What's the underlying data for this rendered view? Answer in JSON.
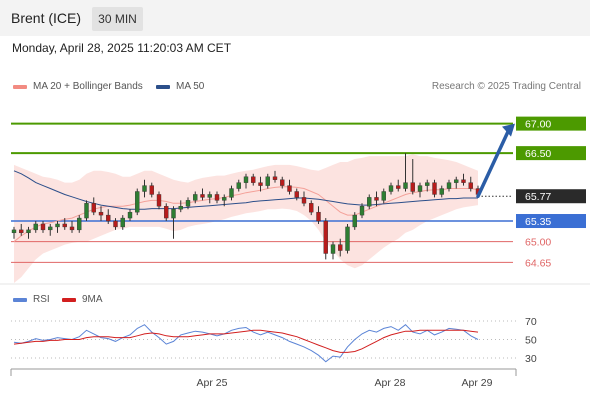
{
  "header": {
    "instrument": "Brent (ICE)",
    "timeframe": "30 MIN"
  },
  "timestamp": "Monday, April 28, 2025 11:20:03 AM CET",
  "legend": {
    "ma20_label": "MA 20 + Bollinger Bands",
    "ma50_label": "MA 50",
    "rsi_label": "RSI",
    "rsi_ma_label": "9MA"
  },
  "credit": "Research © 2025 Trading Central",
  "colors": {
    "ma20": "#f28b82",
    "ma50": "#2c4f8a",
    "rsi": "#5b84d6",
    "rsi_ma": "#d21f1f",
    "resistance": "#4c9a00",
    "support_blue": "#3b6fd4",
    "support_red": "#e06666",
    "current": "#2a2a2a",
    "arrow": "#2b5da6"
  },
  "chart_data": [
    {
      "type": "candlestick",
      "ylim": [
        64.3,
        67.4
      ],
      "levels": [
        {
          "label": "67.00",
          "value": 67.0,
          "kind": "resistance"
        },
        {
          "label": "66.50",
          "value": 66.5,
          "kind": "resistance"
        },
        {
          "label": "65.77",
          "value": 65.77,
          "kind": "current"
        },
        {
          "label": "65.35",
          "value": 65.35,
          "kind": "pivot"
        },
        {
          "label": "65.00",
          "value": 65.0,
          "kind": "support"
        },
        {
          "label": "64.65",
          "value": 64.65,
          "kind": "support"
        }
      ],
      "x_ticks": [
        "Apr 25",
        "Apr 28",
        "Apr 29"
      ],
      "ohlc": [
        [
          65.15,
          65.25,
          65.05,
          65.2
        ],
        [
          65.2,
          65.3,
          65.1,
          65.15
        ],
        [
          65.15,
          65.25,
          65.05,
          65.2
        ],
        [
          65.2,
          65.35,
          65.15,
          65.3
        ],
        [
          65.3,
          65.35,
          65.15,
          65.2
        ],
        [
          65.2,
          65.3,
          65.1,
          65.25
        ],
        [
          65.25,
          65.35,
          65.15,
          65.3
        ],
        [
          65.3,
          65.4,
          65.2,
          65.25
        ],
        [
          65.25,
          65.35,
          65.15,
          65.2
        ],
        [
          65.2,
          65.45,
          65.15,
          65.4
        ],
        [
          65.4,
          65.7,
          65.35,
          65.65
        ],
        [
          65.65,
          65.75,
          65.45,
          65.5
        ],
        [
          65.5,
          65.6,
          65.35,
          65.45
        ],
        [
          65.45,
          65.55,
          65.3,
          65.35
        ],
        [
          65.35,
          65.4,
          65.2,
          65.25
        ],
        [
          65.25,
          65.45,
          65.2,
          65.4
        ],
        [
          65.4,
          65.55,
          65.35,
          65.5
        ],
        [
          65.5,
          65.9,
          65.45,
          65.85
        ],
        [
          65.85,
          66.05,
          65.75,
          65.95
        ],
        [
          65.95,
          66.0,
          65.75,
          65.8
        ],
        [
          65.8,
          65.85,
          65.55,
          65.6
        ],
        [
          65.6,
          65.65,
          65.35,
          65.4
        ],
        [
          65.4,
          65.6,
          65.05,
          65.55
        ],
        [
          65.55,
          65.7,
          65.5,
          65.6
        ],
        [
          65.6,
          65.75,
          65.55,
          65.7
        ],
        [
          65.7,
          65.85,
          65.65,
          65.8
        ],
        [
          65.8,
          65.9,
          65.7,
          65.75
        ],
        [
          65.75,
          65.85,
          65.65,
          65.8
        ],
        [
          65.8,
          65.85,
          65.65,
          65.7
        ],
        [
          65.7,
          65.8,
          65.6,
          65.75
        ],
        [
          65.75,
          65.95,
          65.7,
          65.9
        ],
        [
          65.9,
          66.05,
          65.85,
          66.0
        ],
        [
          66.0,
          66.15,
          65.9,
          66.1
        ],
        [
          66.1,
          66.15,
          65.95,
          66.0
        ],
        [
          66.0,
          66.1,
          65.85,
          65.95
        ],
        [
          65.95,
          66.15,
          65.9,
          66.1
        ],
        [
          66.1,
          66.2,
          66.0,
          66.05
        ],
        [
          66.05,
          66.1,
          65.9,
          65.95
        ],
        [
          65.95,
          66.05,
          65.8,
          65.85
        ],
        [
          65.85,
          65.9,
          65.7,
          65.75
        ],
        [
          65.75,
          65.85,
          65.6,
          65.65
        ],
        [
          65.65,
          65.7,
          65.45,
          65.5
        ],
        [
          65.5,
          65.6,
          65.3,
          65.35
        ],
        [
          65.35,
          65.4,
          64.7,
          64.8
        ],
        [
          64.8,
          65.0,
          64.7,
          64.95
        ],
        [
          64.95,
          65.05,
          64.75,
          64.85
        ],
        [
          64.85,
          65.3,
          64.8,
          65.25
        ],
        [
          65.25,
          65.5,
          65.2,
          65.45
        ],
        [
          65.45,
          65.65,
          65.4,
          65.6
        ],
        [
          65.6,
          65.8,
          65.55,
          65.75
        ],
        [
          65.75,
          65.85,
          65.6,
          65.7
        ],
        [
          65.7,
          65.9,
          65.65,
          65.85
        ],
        [
          65.85,
          66.0,
          65.8,
          65.95
        ],
        [
          65.95,
          66.05,
          65.85,
          65.9
        ],
        [
          65.9,
          66.5,
          65.85,
          66.0
        ],
        [
          66.0,
          66.4,
          65.8,
          65.85
        ],
        [
          65.85,
          66.0,
          65.75,
          65.95
        ],
        [
          65.95,
          66.05,
          65.85,
          66.0
        ],
        [
          66.0,
          66.05,
          65.75,
          65.8
        ],
        [
          65.8,
          65.95,
          65.75,
          65.9
        ],
        [
          65.9,
          66.05,
          65.85,
          66.0
        ],
        [
          66.0,
          66.1,
          65.9,
          66.05
        ],
        [
          66.05,
          66.15,
          65.95,
          66.0
        ],
        [
          66.0,
          66.1,
          65.85,
          65.9
        ],
        [
          65.9,
          65.95,
          65.75,
          65.8
        ]
      ],
      "ma20": [
        65.0,
        65.1,
        65.18,
        65.25,
        65.3,
        65.32,
        65.35,
        65.38,
        65.4,
        65.45,
        65.5,
        65.55,
        65.58,
        65.6,
        65.6,
        65.6,
        65.62,
        65.65,
        65.68,
        65.7,
        65.7,
        65.68,
        65.65,
        65.65,
        65.66,
        65.68,
        65.7,
        65.72,
        65.73,
        65.75,
        65.78,
        65.8,
        65.83,
        65.85,
        65.87,
        65.9,
        65.92,
        65.93,
        65.93,
        65.92,
        65.9,
        65.85,
        65.8,
        65.7,
        65.6,
        65.5,
        65.45,
        65.45,
        65.5,
        65.55,
        65.6,
        65.65,
        65.7,
        65.75,
        65.8,
        65.83,
        65.85,
        65.87,
        65.88,
        65.88,
        65.9,
        65.9,
        65.9,
        65.9,
        65.88
      ],
      "bb_upper": [
        66.3,
        66.25,
        66.2,
        66.15,
        66.1,
        66.08,
        66.05,
        66.0,
        66.0,
        66.05,
        66.15,
        66.2,
        66.2,
        66.18,
        66.15,
        66.1,
        66.1,
        66.15,
        66.2,
        66.2,
        66.15,
        66.1,
        66.05,
        66.02,
        66.0,
        66.05,
        66.08,
        66.1,
        66.12,
        66.12,
        66.15,
        66.18,
        66.2,
        66.22,
        66.25,
        66.28,
        66.3,
        66.3,
        66.3,
        66.28,
        66.25,
        66.22,
        66.2,
        66.25,
        66.3,
        66.35,
        66.35,
        66.4,
        66.42,
        66.45,
        66.45,
        66.45,
        66.45,
        66.45,
        66.45,
        66.48,
        66.45,
        66.45,
        66.42,
        66.4,
        66.38,
        66.35,
        66.3,
        66.25,
        66.2
      ],
      "bb_lower": [
        64.3,
        64.4,
        64.55,
        64.7,
        64.8,
        64.85,
        64.9,
        64.95,
        64.98,
        65.0,
        65.0,
        65.05,
        65.1,
        65.15,
        65.2,
        65.22,
        65.25,
        65.25,
        65.25,
        65.25,
        65.25,
        65.22,
        65.18,
        65.2,
        65.25,
        65.28,
        65.3,
        65.32,
        65.35,
        65.38,
        65.42,
        65.45,
        65.48,
        65.5,
        65.52,
        65.55,
        65.55,
        65.56,
        65.55,
        65.52,
        65.45,
        65.35,
        65.2,
        65.0,
        64.85,
        64.7,
        64.6,
        64.55,
        64.6,
        64.7,
        64.8,
        64.9,
        64.98,
        65.05,
        65.15,
        65.2,
        65.28,
        65.35,
        65.4,
        65.45,
        65.5,
        65.55,
        65.58,
        65.6,
        65.62
      ],
      "ma50": [
        66.2,
        66.15,
        66.08,
        66.0,
        65.95,
        65.9,
        65.85,
        65.8,
        65.76,
        65.72,
        65.68,
        65.65,
        65.62,
        65.6,
        65.58,
        65.56,
        65.55,
        65.55,
        65.55,
        65.56,
        65.56,
        65.56,
        65.56,
        65.57,
        65.58,
        65.59,
        65.6,
        65.61,
        65.62,
        65.63,
        65.64,
        65.65,
        65.66,
        65.68,
        65.69,
        65.7,
        65.71,
        65.72,
        65.73,
        65.74,
        65.74,
        65.73,
        65.72,
        65.7,
        65.68,
        65.66,
        65.64,
        65.63,
        65.62,
        65.62,
        65.63,
        65.64,
        65.65,
        65.66,
        65.67,
        65.68,
        65.69,
        65.7,
        65.71,
        65.72,
        65.73,
        65.73,
        65.74,
        65.74,
        65.74
      ],
      "projection": {
        "from": 65.77,
        "to": 67.0
      }
    },
    {
      "type": "line",
      "title": "RSI",
      "y_ticks": [
        "70",
        "50",
        "30"
      ],
      "ylim": [
        18,
        82
      ],
      "series": [
        {
          "name": "RSI",
          "values": [
            47,
            46,
            48,
            51,
            49,
            50,
            52,
            51,
            50,
            53,
            60,
            56,
            52,
            51,
            48,
            52,
            55,
            62,
            66,
            58,
            52,
            45,
            48,
            55,
            57,
            59,
            58,
            56,
            54,
            56,
            60,
            62,
            63,
            58,
            55,
            58,
            55,
            52,
            48,
            45,
            42,
            38,
            33,
            26,
            32,
            31,
            42,
            50,
            56,
            60,
            58,
            62,
            64,
            60,
            66,
            58,
            56,
            60,
            55,
            58,
            62,
            61,
            60,
            54,
            50
          ]
        },
        {
          "name": "9MA",
          "values": [
            45,
            46,
            47,
            48,
            48,
            49,
            49,
            50,
            50,
            50,
            52,
            53,
            53,
            53,
            52,
            52,
            52,
            54,
            56,
            57,
            56,
            54,
            53,
            53,
            53,
            54,
            55,
            56,
            56,
            56,
            57,
            58,
            59,
            60,
            60,
            59,
            58,
            57,
            55,
            53,
            50,
            47,
            44,
            41,
            38,
            36,
            36,
            37,
            40,
            44,
            48,
            52,
            55,
            57,
            59,
            59,
            60,
            60,
            60,
            60,
            60,
            60,
            60,
            59,
            58
          ]
        }
      ]
    }
  ]
}
